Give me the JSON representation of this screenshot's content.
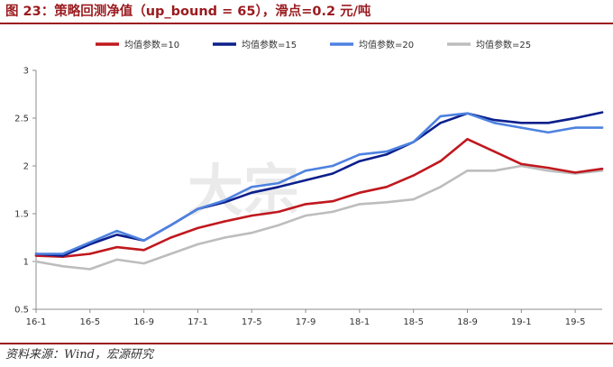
{
  "header": {
    "title": "图 23：策略回测净值（up_bound = 65），滑点=0.2 元/吨"
  },
  "footer": {
    "source": "资料来源：Wind，宏源研究"
  },
  "watermark": {
    "text": "大宗",
    "color": "#e8e8e8"
  },
  "chart_data": {
    "type": "line",
    "title": "",
    "xlabel": "",
    "ylabel": "",
    "ylim": [
      0.5,
      3
    ],
    "y_ticks": [
      "0.5",
      "1",
      "1.5",
      "2",
      "2.5",
      "3"
    ],
    "x_ticks": [
      "16-1",
      "16-5",
      "16-9",
      "17-1",
      "17-5",
      "17-9",
      "18-1",
      "18-5",
      "18-9",
      "19-1",
      "19-5"
    ],
    "grid": false,
    "legend_position": "top-center",
    "x": [
      "16-1",
      "16-3",
      "16-5",
      "16-7",
      "16-9",
      "16-11",
      "17-1",
      "17-3",
      "17-5",
      "17-7",
      "17-9",
      "17-11",
      "18-1",
      "18-3",
      "18-5",
      "18-7",
      "18-9",
      "18-11",
      "19-1",
      "19-3",
      "19-5",
      "19-7"
    ],
    "series": [
      {
        "name": "均值参数=10",
        "color": "#c0181e",
        "values": [
          1.06,
          1.05,
          1.08,
          1.15,
          1.12,
          1.25,
          1.35,
          1.42,
          1.48,
          1.52,
          1.6,
          1.63,
          1.72,
          1.78,
          1.9,
          2.05,
          2.28,
          2.15,
          2.02,
          1.98,
          1.93,
          1.97
        ]
      },
      {
        "name": "均值参数=15",
        "color": "#0b1f8c",
        "values": [
          1.08,
          1.06,
          1.18,
          1.28,
          1.22,
          1.38,
          1.55,
          1.62,
          1.72,
          1.78,
          1.85,
          1.92,
          2.05,
          2.12,
          2.25,
          2.45,
          2.55,
          2.48,
          2.45,
          2.45,
          2.5,
          2.56
        ]
      },
      {
        "name": "均值参数=20",
        "color": "#4e82e0",
        "values": [
          1.08,
          1.08,
          1.2,
          1.32,
          1.22,
          1.38,
          1.55,
          1.64,
          1.78,
          1.82,
          1.95,
          2.0,
          2.12,
          2.15,
          2.25,
          2.52,
          2.55,
          2.45,
          2.4,
          2.35,
          2.4,
          2.4
        ]
      },
      {
        "name": "均值参数=25",
        "color": "#bdbdbd",
        "values": [
          1.0,
          0.95,
          0.92,
          1.02,
          0.98,
          1.08,
          1.18,
          1.25,
          1.3,
          1.38,
          1.48,
          1.52,
          1.6,
          1.62,
          1.65,
          1.78,
          1.95,
          1.95,
          2.0,
          1.95,
          1.92,
          1.95
        ]
      }
    ]
  }
}
